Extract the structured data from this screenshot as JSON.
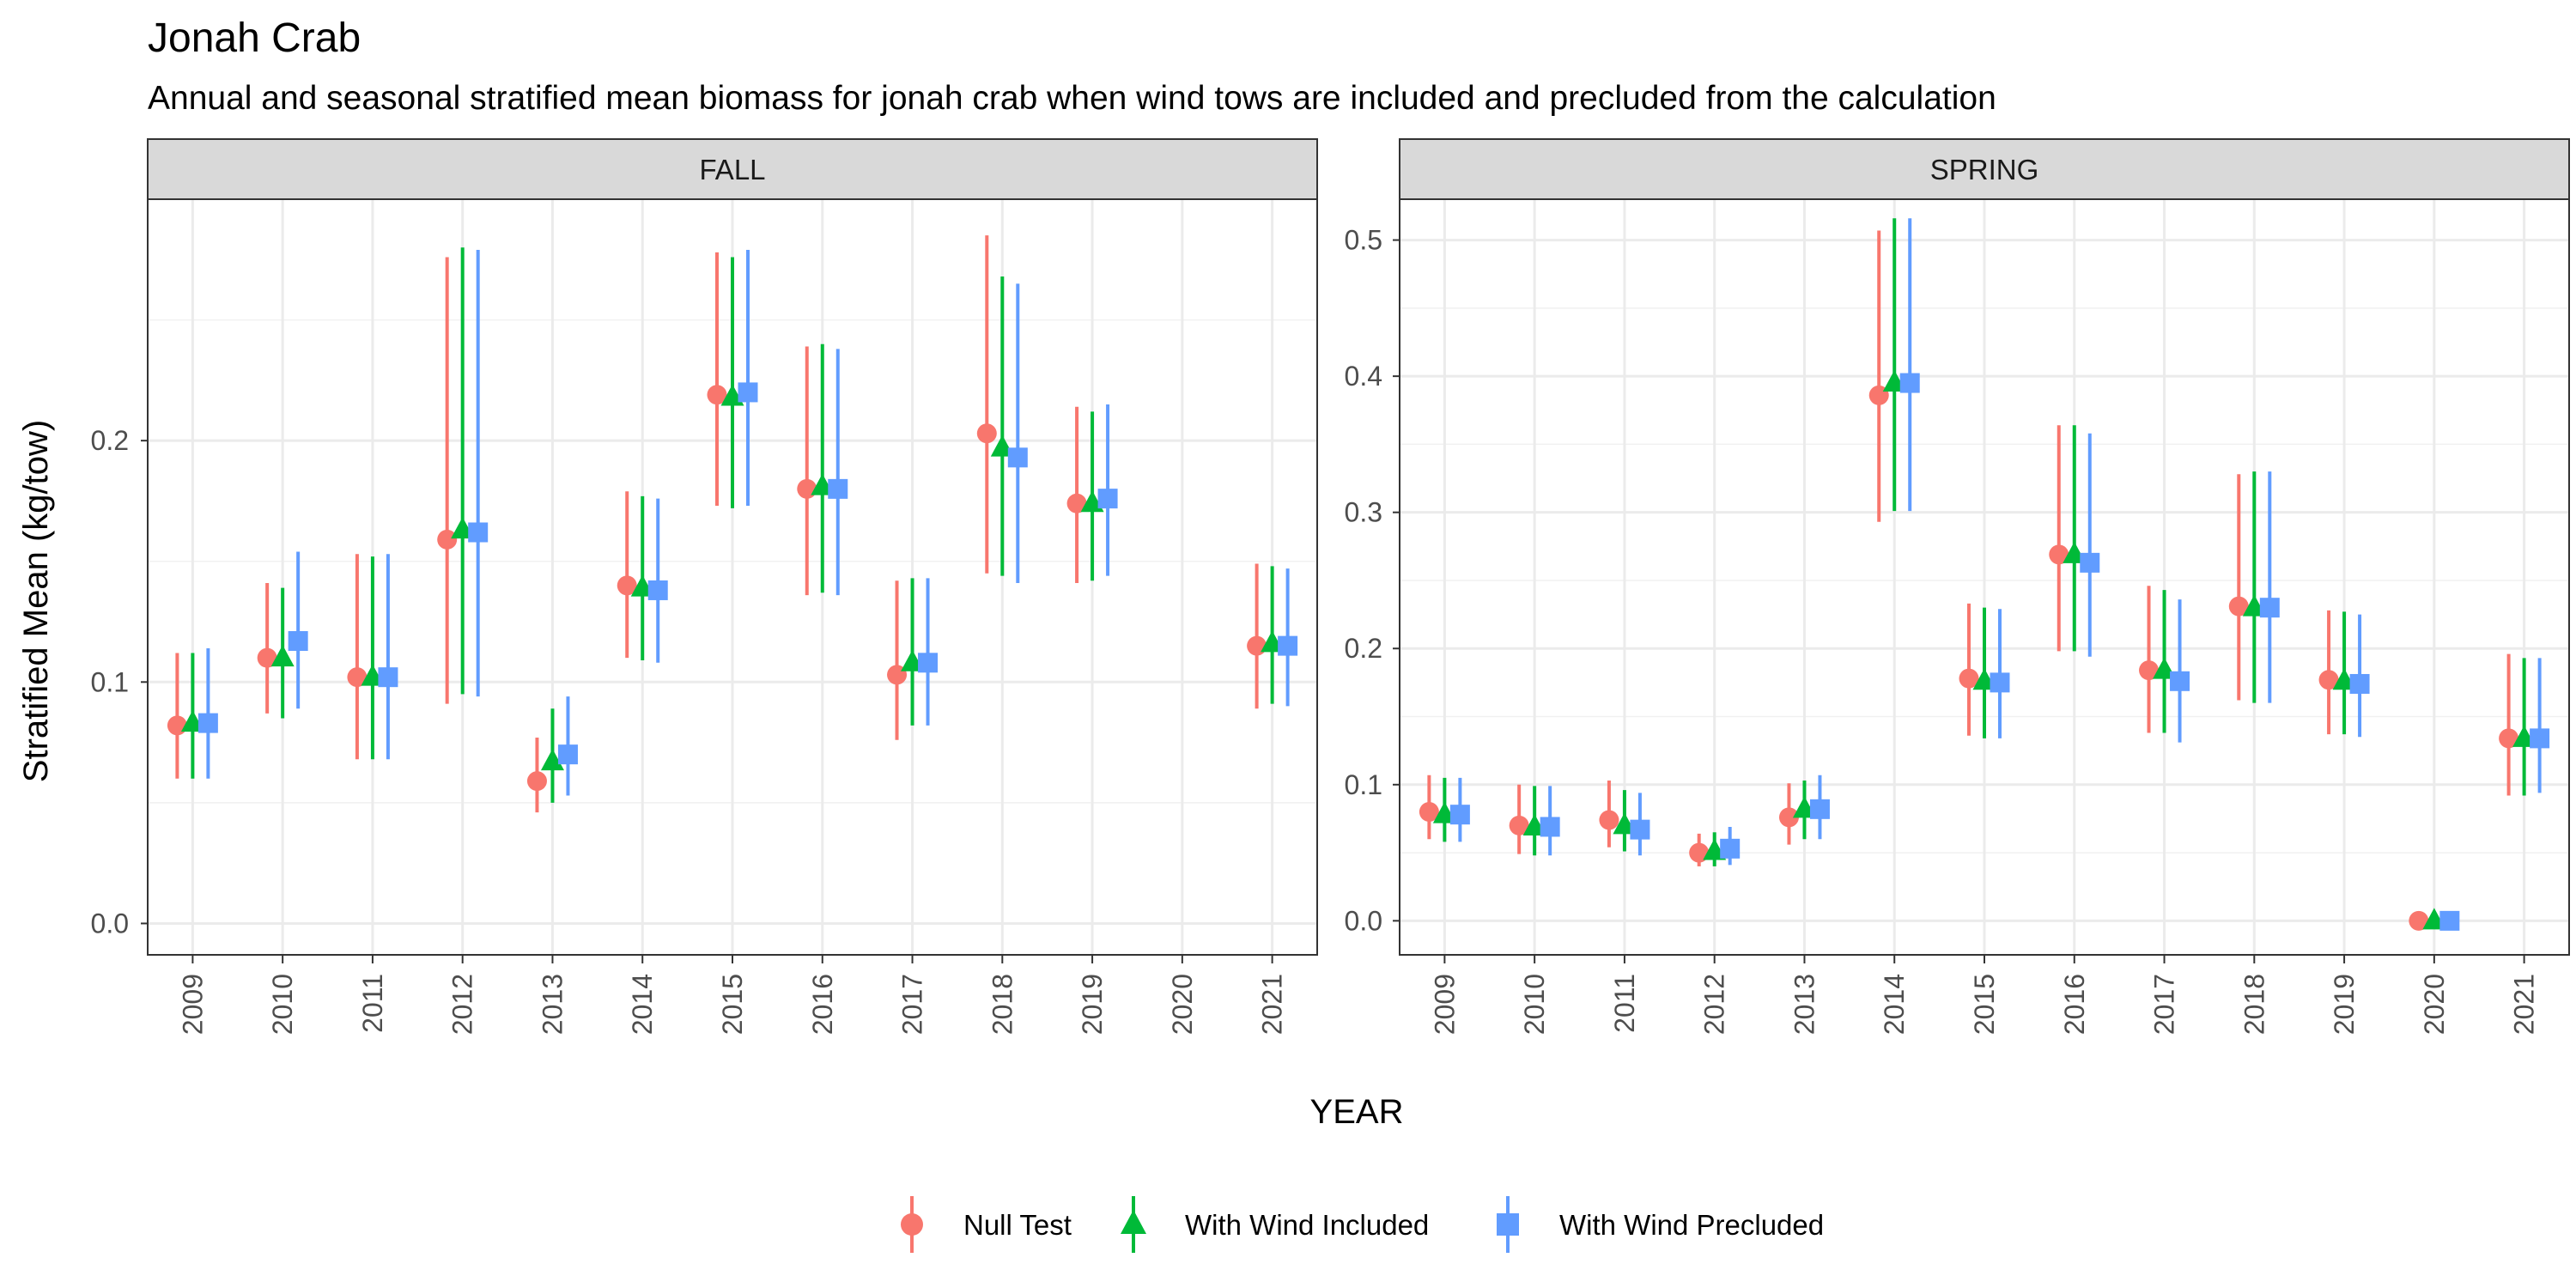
{
  "chart_data": {
    "type": "scatter",
    "title": "Jonah Crab",
    "subtitle": "Annual and seasonal stratified mean biomass for jonah crab when wind tows are included and precluded from the calculation",
    "xlabel": "YEAR",
    "ylabel": "Stratified Mean (kg/tow)",
    "categories": [
      "2009",
      "2010",
      "2011",
      "2012",
      "2013",
      "2014",
      "2015",
      "2016",
      "2017",
      "2018",
      "2019",
      "2020",
      "2021"
    ],
    "series_styles": [
      {
        "name": "Null Test",
        "color": "#F8766D",
        "shape": "circle"
      },
      {
        "name": "With Wind Included",
        "color": "#00BA38",
        "shape": "triangle"
      },
      {
        "name": "With Wind Precluded",
        "color": "#619CFF",
        "shape": "square"
      }
    ],
    "legend_position": "bottom",
    "grid": true,
    "panels": [
      {
        "label": "FALL",
        "ylim": [
          -0.013,
          0.3
        ],
        "yticks": [
          0.0,
          0.1,
          0.2
        ],
        "ytick_labels": [
          "0.0",
          "0.1",
          "0.2"
        ],
        "series": [
          {
            "name": "Null Test",
            "values": [
              {
                "x": "2009",
                "y": 0.082,
                "lo": 0.06,
                "hi": 0.112
              },
              {
                "x": "2010",
                "y": 0.11,
                "lo": 0.087,
                "hi": 0.141
              },
              {
                "x": "2011",
                "y": 0.102,
                "lo": 0.068,
                "hi": 0.153
              },
              {
                "x": "2012",
                "y": 0.159,
                "lo": 0.091,
                "hi": 0.276
              },
              {
                "x": "2013",
                "y": 0.059,
                "lo": 0.046,
                "hi": 0.077
              },
              {
                "x": "2014",
                "y": 0.14,
                "lo": 0.11,
                "hi": 0.179
              },
              {
                "x": "2015",
                "y": 0.219,
                "lo": 0.173,
                "hi": 0.278
              },
              {
                "x": "2016",
                "y": 0.18,
                "lo": 0.136,
                "hi": 0.239
              },
              {
                "x": "2017",
                "y": 0.103,
                "lo": 0.076,
                "hi": 0.142
              },
              {
                "x": "2018",
                "y": 0.203,
                "lo": 0.145,
                "hi": 0.285
              },
              {
                "x": "2019",
                "y": 0.174,
                "lo": 0.141,
                "hi": 0.214
              },
              {
                "x": "2021",
                "y": 0.115,
                "lo": 0.089,
                "hi": 0.149
              }
            ]
          },
          {
            "name": "With Wind Included",
            "values": [
              {
                "x": "2009",
                "y": 0.083,
                "lo": 0.06,
                "hi": 0.112
              },
              {
                "x": "2010",
                "y": 0.11,
                "lo": 0.085,
                "hi": 0.139
              },
              {
                "x": "2011",
                "y": 0.102,
                "lo": 0.068,
                "hi": 0.152
              },
              {
                "x": "2012",
                "y": 0.163,
                "lo": 0.095,
                "hi": 0.28
              },
              {
                "x": "2013",
                "y": 0.067,
                "lo": 0.05,
                "hi": 0.089
              },
              {
                "x": "2014",
                "y": 0.139,
                "lo": 0.109,
                "hi": 0.177
              },
              {
                "x": "2015",
                "y": 0.218,
                "lo": 0.172,
                "hi": 0.276
              },
              {
                "x": "2016",
                "y": 0.181,
                "lo": 0.137,
                "hi": 0.24
              },
              {
                "x": "2017",
                "y": 0.108,
                "lo": 0.082,
                "hi": 0.143
              },
              {
                "x": "2018",
                "y": 0.197,
                "lo": 0.144,
                "hi": 0.268
              },
              {
                "x": "2019",
                "y": 0.174,
                "lo": 0.142,
                "hi": 0.212
              },
              {
                "x": "2021",
                "y": 0.116,
                "lo": 0.091,
                "hi": 0.148
              }
            ]
          },
          {
            "name": "With Wind Precluded",
            "values": [
              {
                "x": "2009",
                "y": 0.083,
                "lo": 0.06,
                "hi": 0.114
              },
              {
                "x": "2010",
                "y": 0.117,
                "lo": 0.089,
                "hi": 0.154
              },
              {
                "x": "2011",
                "y": 0.102,
                "lo": 0.068,
                "hi": 0.153
              },
              {
                "x": "2012",
                "y": 0.162,
                "lo": 0.094,
                "hi": 0.279
              },
              {
                "x": "2013",
                "y": 0.07,
                "lo": 0.053,
                "hi": 0.094
              },
              {
                "x": "2014",
                "y": 0.138,
                "lo": 0.108,
                "hi": 0.176
              },
              {
                "x": "2015",
                "y": 0.22,
                "lo": 0.173,
                "hi": 0.279
              },
              {
                "x": "2016",
                "y": 0.18,
                "lo": 0.136,
                "hi": 0.238
              },
              {
                "x": "2017",
                "y": 0.108,
                "lo": 0.082,
                "hi": 0.143
              },
              {
                "x": "2018",
                "y": 0.193,
                "lo": 0.141,
                "hi": 0.265
              },
              {
                "x": "2019",
                "y": 0.176,
                "lo": 0.144,
                "hi": 0.215
              },
              {
                "x": "2021",
                "y": 0.115,
                "lo": 0.09,
                "hi": 0.147
              }
            ]
          }
        ]
      },
      {
        "label": "SPRING",
        "ylim": [
          -0.025,
          0.53
        ],
        "yticks": [
          0.0,
          0.1,
          0.2,
          0.3,
          0.4,
          0.5
        ],
        "ytick_labels": [
          "0.0",
          "0.1",
          "0.2",
          "0.3",
          "0.4",
          "0.5"
        ],
        "series": [
          {
            "name": "Null Test",
            "values": [
              {
                "x": "2009",
                "y": 0.08,
                "lo": 0.06,
                "hi": 0.107
              },
              {
                "x": "2010",
                "y": 0.07,
                "lo": 0.049,
                "hi": 0.1
              },
              {
                "x": "2011",
                "y": 0.074,
                "lo": 0.054,
                "hi": 0.103
              },
              {
                "x": "2012",
                "y": 0.05,
                "lo": 0.04,
                "hi": 0.064
              },
              {
                "x": "2013",
                "y": 0.076,
                "lo": 0.056,
                "hi": 0.101
              },
              {
                "x": "2014",
                "y": 0.386,
                "lo": 0.293,
                "hi": 0.507
              },
              {
                "x": "2015",
                "y": 0.178,
                "lo": 0.136,
                "hi": 0.233
              },
              {
                "x": "2016",
                "y": 0.269,
                "lo": 0.198,
                "hi": 0.364
              },
              {
                "x": "2017",
                "y": 0.184,
                "lo": 0.138,
                "hi": 0.246
              },
              {
                "x": "2018",
                "y": 0.231,
                "lo": 0.162,
                "hi": 0.328
              },
              {
                "x": "2019",
                "y": 0.177,
                "lo": 0.137,
                "hi": 0.228
              },
              {
                "x": "2020",
                "y": 0.0,
                "lo": 0.0,
                "hi": 0.0
              },
              {
                "x": "2021",
                "y": 0.134,
                "lo": 0.092,
                "hi": 0.196
              }
            ]
          },
          {
            "name": "With Wind Included",
            "values": [
              {
                "x": "2009",
                "y": 0.078,
                "lo": 0.058,
                "hi": 0.105
              },
              {
                "x": "2010",
                "y": 0.069,
                "lo": 0.048,
                "hi": 0.099
              },
              {
                "x": "2011",
                "y": 0.07,
                "lo": 0.051,
                "hi": 0.096
              },
              {
                "x": "2012",
                "y": 0.051,
                "lo": 0.04,
                "hi": 0.065
              },
              {
                "x": "2013",
                "y": 0.082,
                "lo": 0.06,
                "hi": 0.103
              },
              {
                "x": "2014",
                "y": 0.395,
                "lo": 0.301,
                "hi": 0.516
              },
              {
                "x": "2015",
                "y": 0.176,
                "lo": 0.134,
                "hi": 0.23
              },
              {
                "x": "2016",
                "y": 0.269,
                "lo": 0.198,
                "hi": 0.364
              },
              {
                "x": "2017",
                "y": 0.184,
                "lo": 0.138,
                "hi": 0.243
              },
              {
                "x": "2018",
                "y": 0.23,
                "lo": 0.16,
                "hi": 0.33
              },
              {
                "x": "2019",
                "y": 0.176,
                "lo": 0.137,
                "hi": 0.227
              },
              {
                "x": "2020",
                "y": 0.0,
                "lo": 0.0,
                "hi": 0.0
              },
              {
                "x": "2021",
                "y": 0.134,
                "lo": 0.092,
                "hi": 0.193
              }
            ]
          },
          {
            "name": "With Wind Precluded",
            "values": [
              {
                "x": "2009",
                "y": 0.078,
                "lo": 0.058,
                "hi": 0.105
              },
              {
                "x": "2010",
                "y": 0.069,
                "lo": 0.048,
                "hi": 0.099
              },
              {
                "x": "2011",
                "y": 0.067,
                "lo": 0.048,
                "hi": 0.094
              },
              {
                "x": "2012",
                "y": 0.053,
                "lo": 0.041,
                "hi": 0.069
              },
              {
                "x": "2013",
                "y": 0.082,
                "lo": 0.06,
                "hi": 0.107
              },
              {
                "x": "2014",
                "y": 0.395,
                "lo": 0.301,
                "hi": 0.516
              },
              {
                "x": "2015",
                "y": 0.175,
                "lo": 0.134,
                "hi": 0.229
              },
              {
                "x": "2016",
                "y": 0.263,
                "lo": 0.194,
                "hi": 0.358
              },
              {
                "x": "2017",
                "y": 0.176,
                "lo": 0.131,
                "hi": 0.236
              },
              {
                "x": "2018",
                "y": 0.23,
                "lo": 0.16,
                "hi": 0.33
              },
              {
                "x": "2019",
                "y": 0.174,
                "lo": 0.135,
                "hi": 0.225
              },
              {
                "x": "2020",
                "y": 0.0,
                "lo": 0.0,
                "hi": 0.0
              },
              {
                "x": "2021",
                "y": 0.134,
                "lo": 0.094,
                "hi": 0.193
              }
            ]
          }
        ]
      }
    ]
  }
}
